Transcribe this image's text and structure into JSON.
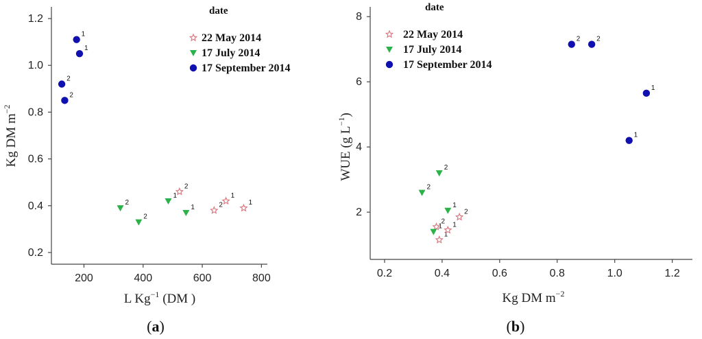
{
  "colors": {
    "may": "#d9737b",
    "july": "#2bb34a",
    "sept": "#1010b0"
  },
  "chart_data": [
    {
      "type": "scatter",
      "panel_label_letter": "a",
      "xlabel": "L Kg",
      "xlabel_sup": "−1",
      "xlabel_suffix": " (DM )",
      "ylabel": "Kg DM m",
      "ylabel_sup": "−2",
      "xlim": [
        90,
        820
      ],
      "ylim": [
        0.15,
        1.25
      ],
      "xticks": [
        200,
        400,
        600,
        800
      ],
      "yticks": [
        0.2,
        0.4,
        0.6,
        0.8,
        1.0,
        1.2
      ],
      "xtick_labels": [
        "200",
        "400",
        "600",
        "800"
      ],
      "ytick_labels": [
        "0.2",
        "0.4",
        "0.6",
        "0.8",
        "1.0",
        "1.2"
      ],
      "legend_title": "date",
      "series": [
        {
          "name": "22 May 2014",
          "marker": "star",
          "points": [
            {
              "x": 523,
              "y": 0.46,
              "label": "2"
            },
            {
              "x": 680,
              "y": 0.42,
              "label": "1"
            },
            {
              "x": 640,
              "y": 0.38,
              "label": "2"
            },
            {
              "x": 740,
              "y": 0.39,
              "label": "1"
            }
          ]
        },
        {
          "name": "17 July 2014",
          "marker": "triangle-down",
          "points": [
            {
              "x": 323,
              "y": 0.39,
              "label": "2"
            },
            {
              "x": 385,
              "y": 0.33,
              "label": "2"
            },
            {
              "x": 485,
              "y": 0.42,
              "label": "1"
            },
            {
              "x": 545,
              "y": 0.37,
              "label": "1"
            }
          ]
        },
        {
          "name": "17 September 2014",
          "marker": "circle",
          "points": [
            {
              "x": 175,
              "y": 1.11,
              "label": "1"
            },
            {
              "x": 185,
              "y": 1.05,
              "label": "1"
            },
            {
              "x": 125,
              "y": 0.92,
              "label": "2"
            },
            {
              "x": 135,
              "y": 0.85,
              "label": "2"
            }
          ]
        }
      ]
    },
    {
      "type": "scatter",
      "panel_label_letter": "b",
      "xlabel": "Kg DM m",
      "xlabel_sup": "−2",
      "xlabel_suffix": "",
      "ylabel": "WUE (g L",
      "ylabel_sup": "−1",
      "ylabel_suffix": ")",
      "xlim": [
        0.15,
        1.27
      ],
      "ylim": [
        0.55,
        8.3
      ],
      "xticks": [
        0.2,
        0.4,
        0.6,
        0.8,
        1.0,
        1.2
      ],
      "yticks": [
        2,
        4,
        6,
        8
      ],
      "xtick_labels": [
        "0.2",
        "0.4",
        "0.6",
        "0.8",
        "1.0",
        "1.2"
      ],
      "ytick_labels": [
        "2",
        "4",
        "6",
        "8"
      ],
      "legend_title": "date",
      "series": [
        {
          "name": "22 May 2014",
          "marker": "star",
          "points": [
            {
              "x": 0.38,
              "y": 1.55,
              "label": "2"
            },
            {
              "x": 0.39,
              "y": 1.15,
              "label": "1"
            },
            {
              "x": 0.42,
              "y": 1.45,
              "label": "1"
            },
            {
              "x": 0.46,
              "y": 1.85,
              "label": "2"
            }
          ]
        },
        {
          "name": "17 July 2014",
          "marker": "triangle-down",
          "points": [
            {
              "x": 0.33,
              "y": 2.6,
              "label": "2"
            },
            {
              "x": 0.39,
              "y": 3.2,
              "label": "2"
            },
            {
              "x": 0.42,
              "y": 2.05,
              "label": "1"
            },
            {
              "x": 0.37,
              "y": 1.4,
              "label": "1"
            }
          ]
        },
        {
          "name": "17 September 2014",
          "marker": "circle",
          "points": [
            {
              "x": 0.85,
              "y": 7.15,
              "label": "2"
            },
            {
              "x": 0.92,
              "y": 7.15,
              "label": "2"
            },
            {
              "x": 1.11,
              "y": 5.65,
              "label": "1"
            },
            {
              "x": 1.05,
              "y": 4.2,
              "label": "1"
            }
          ]
        }
      ]
    }
  ]
}
